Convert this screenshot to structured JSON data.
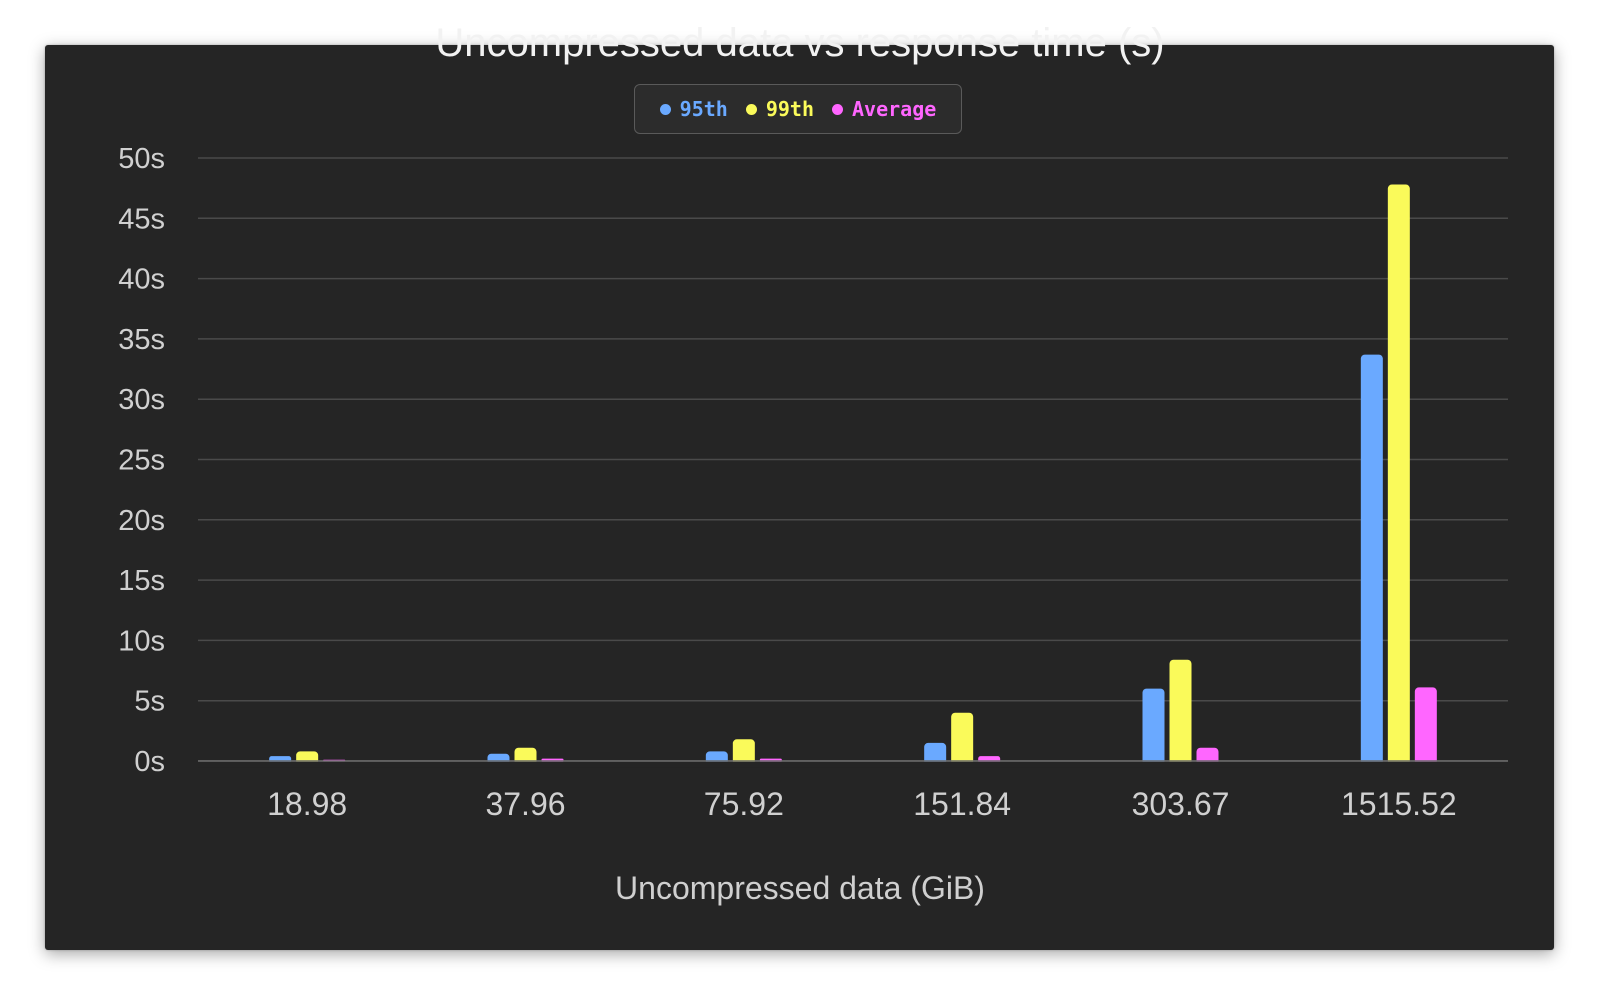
{
  "chart_data": {
    "type": "bar",
    "title": "Uncompressed data vs response time (s)",
    "xlabel": "Uncompressed data (GiB)",
    "ylabel": "",
    "categories": [
      "18.98",
      "37.96",
      "75.92",
      "151.84",
      "303.67",
      "1515.52"
    ],
    "series": [
      {
        "name": "95th",
        "color": "#6aa9ff",
        "values": [
          0.4,
          0.6,
          0.8,
          1.5,
          6.0,
          33.7
        ]
      },
      {
        "name": "99th",
        "color": "#fafa5a",
        "values": [
          0.8,
          1.1,
          1.8,
          4.0,
          8.4,
          47.8
        ]
      },
      {
        "name": "Average",
        "color": "#ff66ff",
        "values": [
          0.1,
          0.2,
          0.2,
          0.4,
          1.1,
          6.1
        ]
      }
    ],
    "y_ticks": [
      "0s",
      "5s",
      "10s",
      "15s",
      "20s",
      "25s",
      "30s",
      "35s",
      "40s",
      "45s",
      "50s"
    ],
    "ylim": [
      0,
      50
    ],
    "grid": true,
    "legend_position": "top-center"
  },
  "colors": {
    "background": "#252525",
    "grid": "#4a4a4a",
    "axis_text": "#d0d0d0"
  }
}
